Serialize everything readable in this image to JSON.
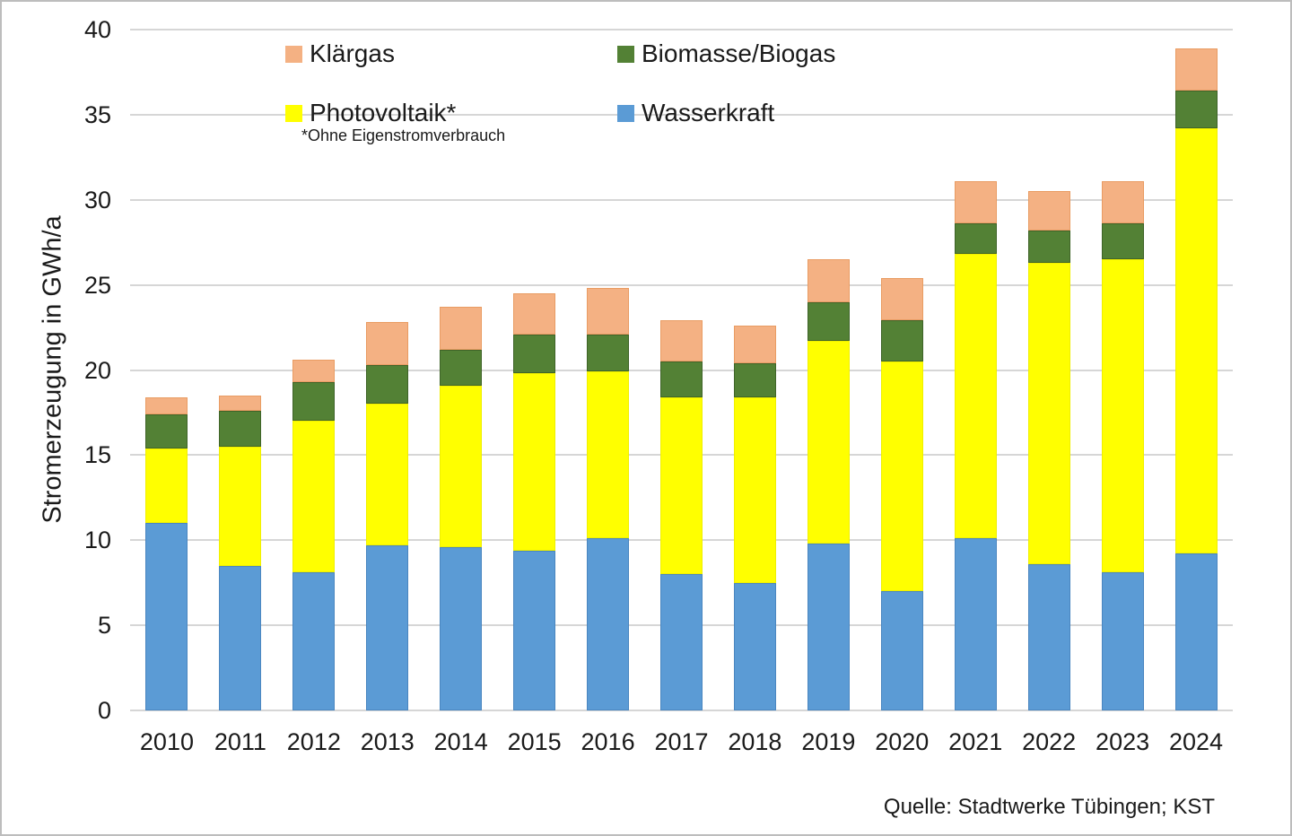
{
  "y_axis": {
    "title": "Stromerzeugung in GWh/a",
    "tick_labels": [
      "0",
      "5",
      "10",
      "15",
      "20",
      "25",
      "30",
      "35",
      "40"
    ]
  },
  "legend": {
    "items": [
      {
        "label": "Klärgas",
        "color": "#F4B183",
        "border": "#e99c63"
      },
      {
        "label": "Biomasse/Biogas",
        "color": "#538135",
        "border": "#3f6428"
      },
      {
        "label": "Photovoltaik*",
        "color": "#FFFF00",
        "border": "#f0f000"
      },
      {
        "label": "Wasserkraft",
        "color": "#5B9BD5",
        "border": "#4a86c0"
      }
    ],
    "note": "*Ohne Eigenstromverbrauch"
  },
  "source": {
    "text": "Quelle: Stadtwerke Tübingen; KST"
  },
  "chart_data": {
    "type": "bar",
    "stacked": true,
    "title": "",
    "xlabel": "",
    "ylabel": "Stromerzeugung in GWh/a",
    "ylim": [
      0,
      40
    ],
    "ytick_step": 5,
    "grid": true,
    "legend_position": "top-left, two columns, inside plot",
    "source": "Quelle: Stadtwerke Tübingen; KST",
    "categories": [
      "2010",
      "2011",
      "2012",
      "2013",
      "2014",
      "2015",
      "2016",
      "2017",
      "2018",
      "2019",
      "2020",
      "2021",
      "2022",
      "2023",
      "2024"
    ],
    "series": [
      {
        "name": "Wasserkraft",
        "color": "#5B9BD5",
        "border": "#4a86c0",
        "values": [
          11.0,
          8.5,
          8.1,
          9.7,
          9.6,
          9.4,
          10.1,
          8.0,
          7.5,
          9.8,
          7.0,
          10.1,
          8.6,
          8.1,
          9.2
        ]
      },
      {
        "name": "Photovoltaik*",
        "color": "#FFFF00",
        "border": "#f0f000",
        "values": [
          4.4,
          7.0,
          8.9,
          8.3,
          9.5,
          10.4,
          9.8,
          10.4,
          10.9,
          11.9,
          13.5,
          16.7,
          17.7,
          18.4,
          25.0
        ]
      },
      {
        "name": "Biomasse/Biogas",
        "color": "#538135",
        "border": "#3f6428",
        "values": [
          2.0,
          2.1,
          2.3,
          2.3,
          2.1,
          2.3,
          2.2,
          2.1,
          2.0,
          2.3,
          2.4,
          1.8,
          1.9,
          2.1,
          2.2
        ]
      },
      {
        "name": "Klärgas",
        "color": "#F4B183",
        "border": "#e99c63",
        "values": [
          1.0,
          0.9,
          1.3,
          2.5,
          2.5,
          2.4,
          2.7,
          2.4,
          2.2,
          2.5,
          2.5,
          2.5,
          2.3,
          2.5,
          2.5
        ]
      }
    ],
    "totals": [
      18.4,
      18.5,
      20.6,
      22.8,
      23.7,
      24.5,
      24.8,
      22.9,
      22.6,
      26.5,
      25.4,
      31.1,
      30.5,
      31.1,
      38.9
    ]
  }
}
